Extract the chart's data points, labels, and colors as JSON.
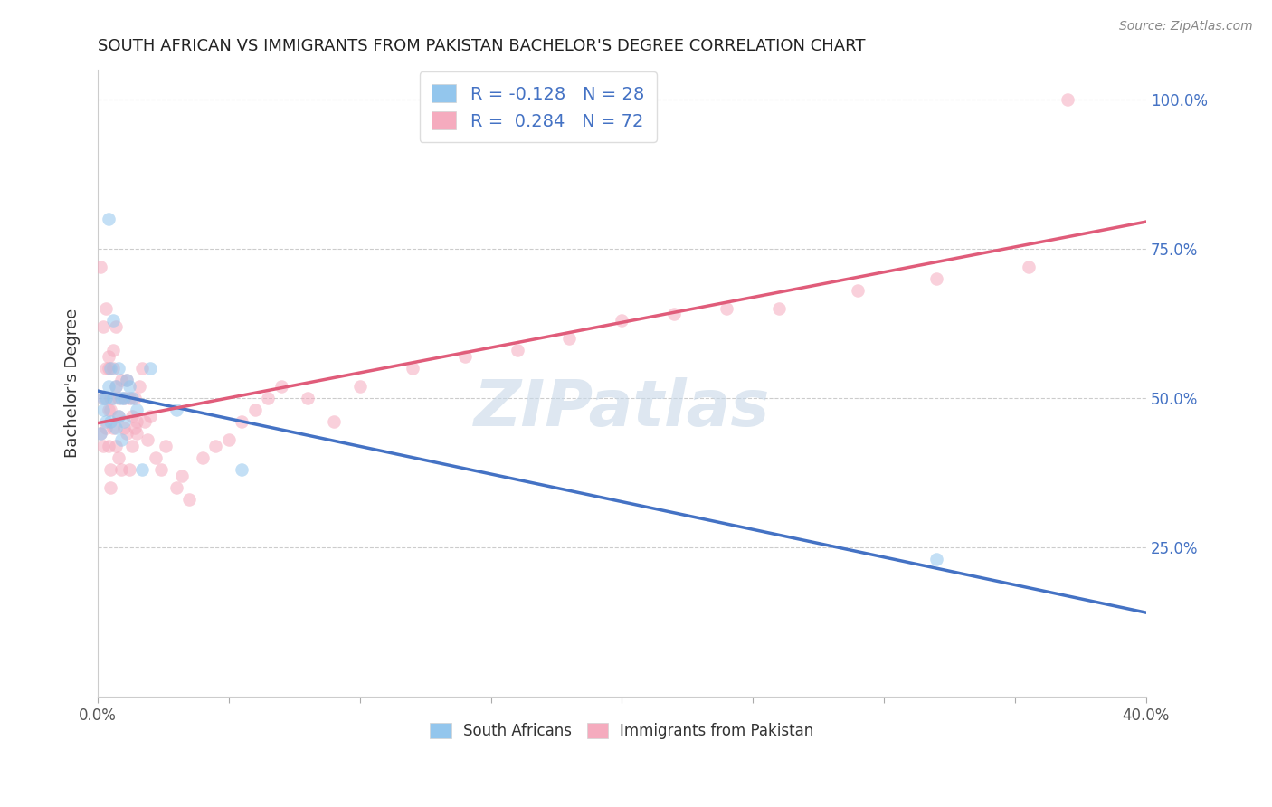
{
  "title": "SOUTH AFRICAN VS IMMIGRANTS FROM PAKISTAN BACHELOR'S DEGREE CORRELATION CHART",
  "source": "Source: ZipAtlas.com",
  "ylabel": "Bachelor's Degree",
  "xlim": [
    0.0,
    0.4
  ],
  "ylim": [
    0.0,
    1.05
  ],
  "yticks": [
    0.25,
    0.5,
    0.75,
    1.0
  ],
  "ytick_labels": [
    "25.0%",
    "50.0%",
    "75.0%",
    "100.0%"
  ],
  "legend_r_blue": "R = -0.128",
  "legend_n_blue": "N = 28",
  "legend_r_pink": "R =  0.284",
  "legend_n_pink": "N = 72",
  "blue_color": "#93C6ED",
  "pink_color": "#F5ABBE",
  "line_blue": "#4472C4",
  "line_pink": "#E05C7A",
  "south_africans_x": [
    0.001,
    0.002,
    0.002,
    0.003,
    0.003,
    0.004,
    0.004,
    0.005,
    0.005,
    0.006,
    0.006,
    0.007,
    0.007,
    0.008,
    0.008,
    0.009,
    0.009,
    0.01,
    0.01,
    0.011,
    0.012,
    0.013,
    0.015,
    0.017,
    0.02,
    0.03,
    0.055,
    0.32
  ],
  "south_africans_y": [
    0.44,
    0.48,
    0.5,
    0.5,
    0.46,
    0.52,
    0.8,
    0.55,
    0.46,
    0.63,
    0.5,
    0.52,
    0.45,
    0.55,
    0.47,
    0.43,
    0.5,
    0.5,
    0.46,
    0.53,
    0.52,
    0.5,
    0.48,
    0.38,
    0.55,
    0.48,
    0.38,
    0.23
  ],
  "pakistan_x": [
    0.001,
    0.001,
    0.002,
    0.002,
    0.002,
    0.003,
    0.003,
    0.003,
    0.004,
    0.004,
    0.004,
    0.004,
    0.005,
    0.005,
    0.005,
    0.005,
    0.006,
    0.006,
    0.006,
    0.007,
    0.007,
    0.007,
    0.008,
    0.008,
    0.008,
    0.009,
    0.009,
    0.01,
    0.01,
    0.011,
    0.011,
    0.012,
    0.012,
    0.013,
    0.013,
    0.014,
    0.014,
    0.015,
    0.015,
    0.016,
    0.017,
    0.018,
    0.019,
    0.02,
    0.022,
    0.024,
    0.026,
    0.03,
    0.032,
    0.035,
    0.04,
    0.045,
    0.05,
    0.055,
    0.06,
    0.065,
    0.07,
    0.08,
    0.09,
    0.1,
    0.12,
    0.14,
    0.16,
    0.18,
    0.2,
    0.22,
    0.24,
    0.26,
    0.29,
    0.32,
    0.355,
    0.37
  ],
  "pakistan_y": [
    0.44,
    0.72,
    0.5,
    0.62,
    0.42,
    0.45,
    0.65,
    0.55,
    0.48,
    0.57,
    0.42,
    0.55,
    0.5,
    0.48,
    0.38,
    0.35,
    0.55,
    0.45,
    0.58,
    0.52,
    0.42,
    0.62,
    0.47,
    0.5,
    0.4,
    0.38,
    0.53,
    0.5,
    0.45,
    0.53,
    0.44,
    0.5,
    0.38,
    0.47,
    0.42,
    0.5,
    0.45,
    0.46,
    0.44,
    0.52,
    0.55,
    0.46,
    0.43,
    0.47,
    0.4,
    0.38,
    0.42,
    0.35,
    0.37,
    0.33,
    0.4,
    0.42,
    0.43,
    0.46,
    0.48,
    0.5,
    0.52,
    0.5,
    0.46,
    0.52,
    0.55,
    0.57,
    0.58,
    0.6,
    0.63,
    0.64,
    0.65,
    0.65,
    0.68,
    0.7,
    0.72,
    1.0
  ],
  "marker_size": 110,
  "alpha": 0.55,
  "xtick_positions": [
    0.0,
    0.05,
    0.1,
    0.15,
    0.2,
    0.25,
    0.3,
    0.35,
    0.4
  ],
  "xtick_labels_show": {
    "0.0": "0.0%",
    "0.40": "40.0%"
  }
}
